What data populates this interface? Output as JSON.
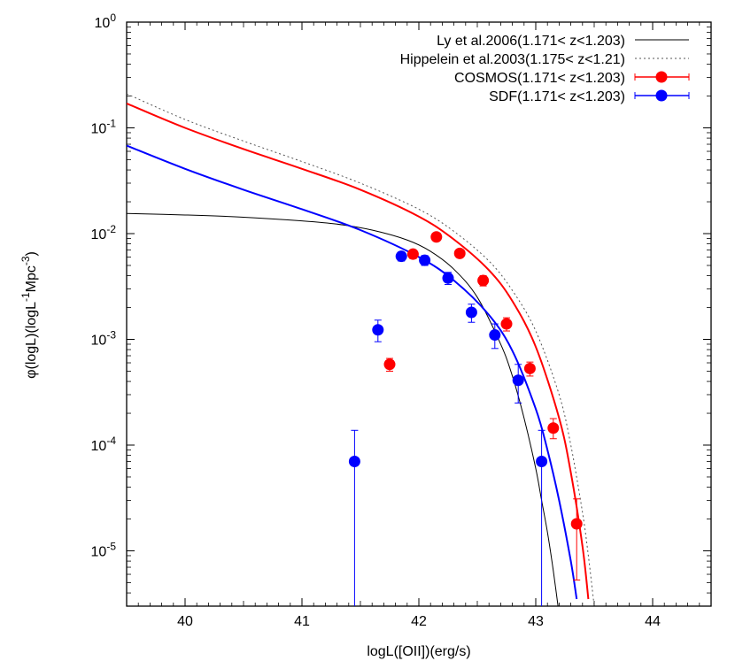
{
  "chart_data": {
    "type": "scatter",
    "xlabel": "logL([OII])(erg/s)",
    "ylabel": {
      "parts": [
        "φ(logL)(logL",
        "-1",
        "Mpc",
        "-3",
        ")"
      ]
    },
    "xlim": [
      39.5,
      44.5
    ],
    "ylim": [
      3e-06,
      1
    ],
    "yscale": "log",
    "x_ticks": [
      40,
      41,
      42,
      43,
      44
    ],
    "x_tick_labels": [
      "40",
      "41",
      "42",
      "43",
      "44"
    ],
    "y_ticks": [
      1e-05,
      0.0001,
      0.001,
      0.01,
      0.1,
      1
    ],
    "y_tick_labels": [
      {
        "base": "10",
        "exp": "-5"
      },
      {
        "base": "10",
        "exp": "-4"
      },
      {
        "base": "10",
        "exp": "-3"
      },
      {
        "base": "10",
        "exp": "-2"
      },
      {
        "base": "10",
        "exp": "-1"
      },
      {
        "base": "10",
        "exp": "0"
      }
    ],
    "legend_position": "top-right",
    "series": [
      {
        "name": "Ly et al.2006(1.171< z<1.203)",
        "kind": "line",
        "color": "#000000",
        "dash": "",
        "x": [
          39.5,
          40.0,
          40.5,
          41.0,
          41.3,
          41.6,
          41.9,
          42.1,
          42.3,
          42.5,
          42.7,
          42.8,
          42.9,
          43.0,
          43.05,
          43.1,
          43.15,
          43.2
        ],
        "y": [
          0.0155,
          0.015,
          0.0143,
          0.0132,
          0.0123,
          0.0108,
          0.0087,
          0.0068,
          0.0046,
          0.0025,
          0.0009,
          0.00045,
          0.00018,
          6e-05,
          3e-05,
          1.5e-05,
          6.5e-06,
          2.5e-06
        ]
      },
      {
        "name": "Hippelein et al.2003(1.175< z<1.21)",
        "kind": "line",
        "color": "#555555",
        "dash": "2,3",
        "x": [
          39.5,
          40.0,
          40.5,
          41.0,
          41.5,
          42.0,
          42.3,
          42.6,
          42.8,
          43.0,
          43.2,
          43.3,
          43.4,
          43.45,
          43.5
        ],
        "y": [
          0.21,
          0.12,
          0.075,
          0.048,
          0.03,
          0.017,
          0.0105,
          0.0055,
          0.0029,
          0.0012,
          0.0003,
          0.0001,
          2.3e-05,
          9e-06,
          3e-06
        ]
      },
      {
        "name": "COSMOS(1.171< z<1.203)",
        "kind": "points+fit",
        "color": "#ff0000",
        "points": [
          {
            "x": 41.75,
            "y": 0.00058,
            "err_low": 0.0005,
            "err_high": 0.00066
          },
          {
            "x": 41.95,
            "y": 0.0064,
            "err_low": 0.0058,
            "err_high": 0.0069
          },
          {
            "x": 42.15,
            "y": 0.0093,
            "err_low": 0.0087,
            "err_high": 0.0099
          },
          {
            "x": 42.35,
            "y": 0.0065,
            "err_low": 0.006,
            "err_high": 0.007
          },
          {
            "x": 42.55,
            "y": 0.0036,
            "err_low": 0.0032,
            "err_high": 0.004
          },
          {
            "x": 42.75,
            "y": 0.0014,
            "err_low": 0.0012,
            "err_high": 0.0016
          },
          {
            "x": 42.95,
            "y": 0.00053,
            "err_low": 0.00045,
            "err_high": 0.00061
          },
          {
            "x": 43.15,
            "y": 0.000145,
            "err_low": 0.000115,
            "err_high": 0.000178
          },
          {
            "x": 43.35,
            "y": 1.8e-05,
            "err_low": 5.3e-06,
            "err_high": 3.1e-05
          }
        ],
        "fit_x": [
          39.5,
          40.0,
          40.5,
          41.0,
          41.5,
          42.0,
          42.3,
          42.6,
          42.8,
          43.0,
          43.2,
          43.3,
          43.4,
          43.45
        ],
        "fit_y": [
          0.17,
          0.1,
          0.063,
          0.041,
          0.026,
          0.0145,
          0.0088,
          0.0045,
          0.0023,
          0.00085,
          0.00018,
          5.5e-05,
          1.1e-05,
          3.5e-06
        ]
      },
      {
        "name": "SDF(1.171< z<1.203)",
        "kind": "points+fit",
        "color": "#0000ff",
        "points": [
          {
            "x": 41.45,
            "y": 7e-05,
            "err_low": 1e-07,
            "err_high": 0.000138
          },
          {
            "x": 41.65,
            "y": 0.00123,
            "err_low": 0.00095,
            "err_high": 0.00152
          },
          {
            "x": 41.85,
            "y": 0.0061,
            "err_low": 0.0055,
            "err_high": 0.0067
          },
          {
            "x": 42.05,
            "y": 0.0056,
            "err_low": 0.005,
            "err_high": 0.0062
          },
          {
            "x": 42.25,
            "y": 0.0038,
            "err_low": 0.0033,
            "err_high": 0.0043
          },
          {
            "x": 42.45,
            "y": 0.0018,
            "err_low": 0.00145,
            "err_high": 0.00215
          },
          {
            "x": 42.65,
            "y": 0.0011,
            "err_low": 0.00082,
            "err_high": 0.0014
          },
          {
            "x": 42.85,
            "y": 0.00041,
            "err_low": 0.00025,
            "err_high": 0.00058
          },
          {
            "x": 43.05,
            "y": 7e-05,
            "err_low": 1e-07,
            "err_high": 0.000138
          }
        ],
        "fit_x": [
          39.5,
          40.0,
          40.5,
          41.0,
          41.5,
          42.0,
          42.3,
          42.6,
          42.8,
          43.0,
          43.1,
          43.2,
          43.3,
          43.35
        ],
        "fit_y": [
          0.068,
          0.041,
          0.026,
          0.017,
          0.0108,
          0.006,
          0.0036,
          0.0017,
          0.00078,
          0.00022,
          9e-05,
          3e-05,
          8e-06,
          3.5e-06
        ]
      }
    ]
  }
}
